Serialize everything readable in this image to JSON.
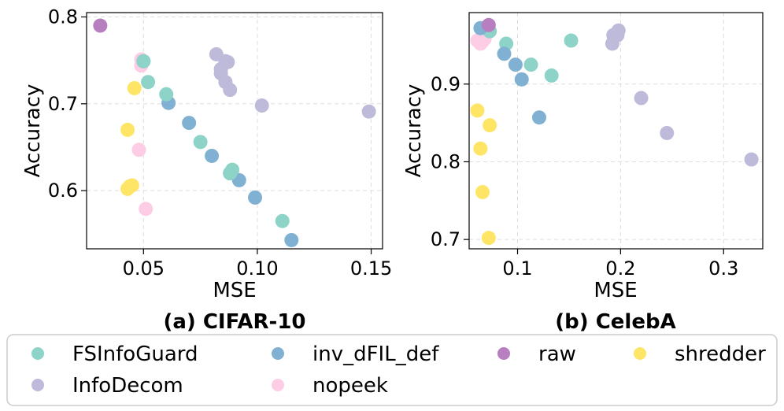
{
  "colors": {
    "FSInfoGuard": "#8dd3c7",
    "inv_dFIL_def": "#80b1d3",
    "raw": "#b77fc0",
    "shredder": "#ffe566",
    "InfoDecom": "#bebada",
    "nopeek": "#fccde5"
  },
  "legend": {
    "items": [
      {
        "name": "FSInfoGuard",
        "color": "#8dd3c7"
      },
      {
        "name": "inv_dFIL_def",
        "color": "#80b1d3"
      },
      {
        "name": "raw",
        "color": "#b77fc0"
      },
      {
        "name": "shredder",
        "color": "#ffe566"
      },
      {
        "name": "InfoDecom",
        "color": "#bebada"
      },
      {
        "name": "nopeek",
        "color": "#fccde5"
      }
    ]
  },
  "chart_data": [
    {
      "type": "scatter",
      "caption": "(a) CIFAR-10",
      "xlabel": "MSE",
      "ylabel": "Accuracy",
      "xlim": [
        0.025,
        0.155
      ],
      "ylim": [
        0.533,
        0.805
      ],
      "xticks": [
        0.05,
        0.1,
        0.15
      ],
      "xtick_labels": [
        "0.05",
        "0.10",
        "0.15"
      ],
      "yticks": [
        0.6,
        0.7,
        0.8
      ],
      "ytick_labels": [
        "0.6",
        "0.7",
        "0.8"
      ],
      "grid": true,
      "series": [
        {
          "name": "InfoDecom",
          "points": [
            [
              0.082,
              0.757
            ],
            [
              0.086,
              0.749
            ],
            [
              0.087,
              0.748
            ],
            [
              0.084,
              0.74
            ],
            [
              0.084,
              0.735
            ],
            [
              0.086,
              0.725
            ],
            [
              0.088,
              0.716
            ],
            [
              0.102,
              0.698
            ],
            [
              0.149,
              0.691
            ]
          ]
        },
        {
          "name": "nopeek",
          "points": [
            [
              0.049,
              0.751
            ],
            [
              0.049,
              0.744
            ],
            [
              0.048,
              0.647
            ],
            [
              0.051,
              0.579
            ]
          ]
        },
        {
          "name": "inv_dFIL_def",
          "points": [
            [
              0.05,
              0.749
            ],
            [
              0.061,
              0.701
            ],
            [
              0.07,
              0.678
            ],
            [
              0.08,
              0.64
            ],
            [
              0.088,
              0.62
            ],
            [
              0.092,
              0.612
            ],
            [
              0.099,
              0.592
            ],
            [
              0.115,
              0.543
            ]
          ]
        },
        {
          "name": "FSInfoGuard",
          "points": [
            [
              0.05,
              0.749
            ],
            [
              0.052,
              0.725
            ],
            [
              0.06,
              0.711
            ],
            [
              0.075,
              0.656
            ],
            [
              0.089,
              0.624
            ],
            [
              0.088,
              0.62
            ],
            [
              0.111,
              0.565
            ]
          ]
        },
        {
          "name": "shredder",
          "points": [
            [
              0.046,
              0.718
            ],
            [
              0.043,
              0.67
            ],
            [
              0.045,
              0.606
            ],
            [
              0.044,
              0.605
            ],
            [
              0.043,
              0.602
            ]
          ]
        },
        {
          "name": "raw",
          "points": [
            [
              0.031,
              0.79
            ]
          ]
        }
      ]
    },
    {
      "type": "scatter",
      "caption": "(b) CelebA",
      "xlabel": "MSE",
      "ylabel": "Accuracy",
      "xlim": [
        0.053,
        0.338
      ],
      "ylim": [
        0.688,
        0.992
      ],
      "xticks": [
        0.1,
        0.2,
        0.3
      ],
      "xtick_labels": [
        "0.1",
        "0.2",
        "0.3"
      ],
      "yticks": [
        0.7,
        0.8,
        0.9
      ],
      "ytick_labels": [
        "0.7",
        "0.8",
        "0.9"
      ],
      "grid": true,
      "series": [
        {
          "name": "nopeek",
          "points": [
            [
              0.061,
              0.956
            ],
            [
              0.064,
              0.952
            ],
            [
              0.066,
              0.955
            ],
            [
              0.068,
              0.958
            ]
          ]
        },
        {
          "name": "InfoDecom",
          "points": [
            [
              0.192,
              0.952
            ],
            [
              0.193,
              0.963
            ],
            [
              0.197,
              0.963
            ],
            [
              0.198,
              0.969
            ],
            [
              0.22,
              0.882
            ],
            [
              0.245,
              0.837
            ],
            [
              0.327,
              0.803
            ]
          ]
        },
        {
          "name": "FSInfoGuard",
          "points": [
            [
              0.073,
              0.968
            ],
            [
              0.089,
              0.952
            ],
            [
              0.113,
              0.925
            ],
            [
              0.133,
              0.911
            ],
            [
              0.152,
              0.956
            ]
          ]
        },
        {
          "name": "inv_dFIL_def",
          "points": [
            [
              0.064,
              0.972
            ],
            [
              0.087,
              0.939
            ],
            [
              0.098,
              0.925
            ],
            [
              0.104,
              0.906
            ],
            [
              0.121,
              0.857
            ]
          ]
        },
        {
          "name": "shredder",
          "points": [
            [
              0.061,
              0.866
            ],
            [
              0.073,
              0.847
            ],
            [
              0.064,
              0.817
            ],
            [
              0.066,
              0.761
            ],
            [
              0.072,
              0.702
            ]
          ]
        },
        {
          "name": "raw",
          "points": [
            [
              0.072,
              0.976
            ]
          ]
        }
      ]
    }
  ]
}
